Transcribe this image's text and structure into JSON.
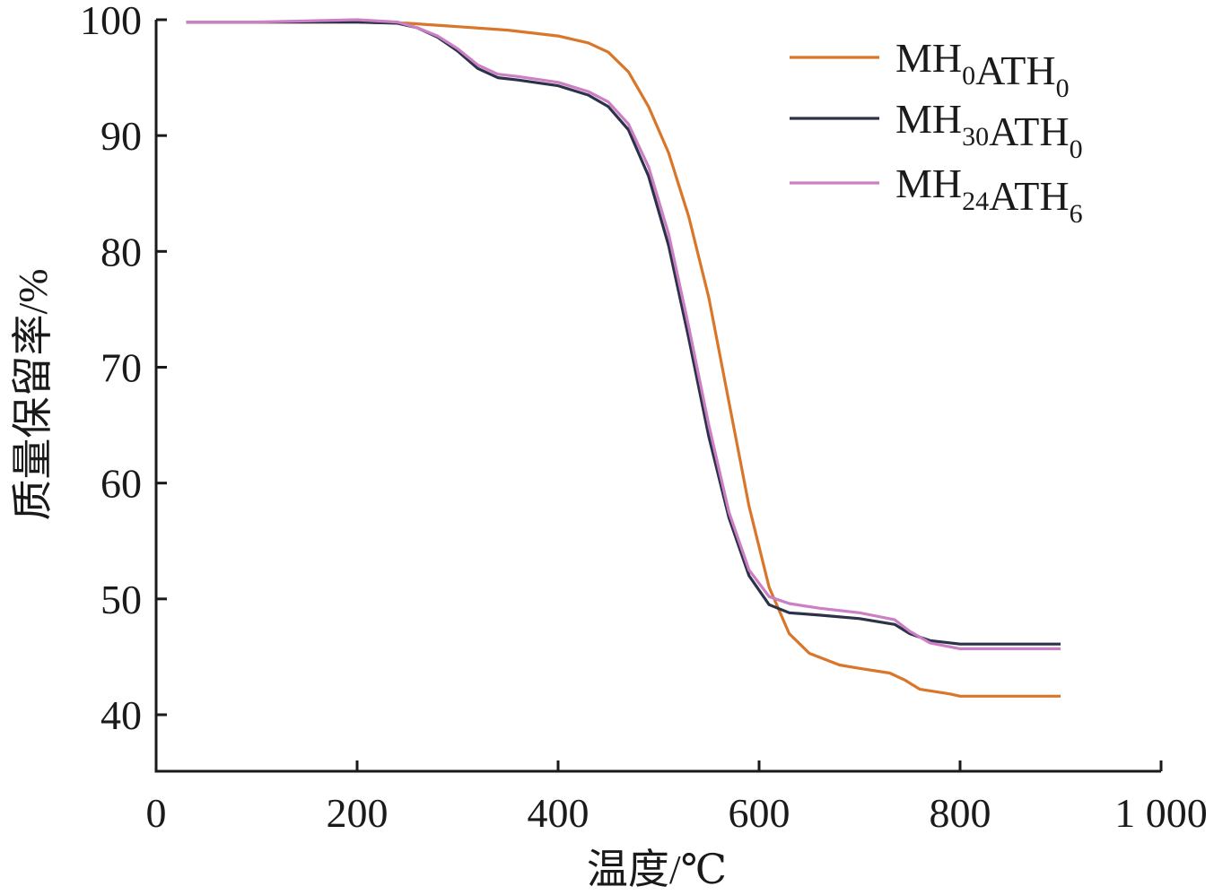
{
  "chart_data": {
    "type": "line",
    "xlabel": "温度/℃",
    "ylabel": "质量保留率/%",
    "xlim": [
      0,
      1000
    ],
    "ylim": [
      35,
      100
    ],
    "xticks": [
      0,
      200,
      400,
      600,
      800,
      1000
    ],
    "xtick_labels": [
      "0",
      "200",
      "400",
      "600",
      "800",
      "1 000"
    ],
    "yticks": [
      40,
      50,
      60,
      70,
      80,
      90,
      100
    ],
    "ytick_labels": [
      "40",
      "50",
      "60",
      "70",
      "80",
      "90",
      "100"
    ],
    "grid": false,
    "legend_position": "top-right",
    "series": [
      {
        "name": "MH0ATH0",
        "legend_parts": [
          [
            "MH",
            "0"
          ],
          [
            "ATH",
            "0"
          ]
        ],
        "color": "#d9762a",
        "points": [
          [
            30,
            99.8
          ],
          [
            100,
            99.8
          ],
          [
            200,
            99.8
          ],
          [
            250,
            99.7
          ],
          [
            300,
            99.4
          ],
          [
            350,
            99.1
          ],
          [
            400,
            98.6
          ],
          [
            430,
            98.0
          ],
          [
            450,
            97.2
          ],
          [
            470,
            95.5
          ],
          [
            490,
            92.5
          ],
          [
            510,
            88.5
          ],
          [
            530,
            83.0
          ],
          [
            550,
            76.0
          ],
          [
            570,
            67.0
          ],
          [
            590,
            58.0
          ],
          [
            610,
            51.0
          ],
          [
            630,
            47.0
          ],
          [
            650,
            45.3
          ],
          [
            680,
            44.3
          ],
          [
            700,
            44.0
          ],
          [
            730,
            43.6
          ],
          [
            745,
            43.0
          ],
          [
            760,
            42.2
          ],
          [
            790,
            41.8
          ],
          [
            800,
            41.6
          ],
          [
            900,
            41.6
          ]
        ]
      },
      {
        "name": "MH30ATH0",
        "legend_parts": [
          [
            "MH",
            "30"
          ],
          [
            "ATH",
            "0"
          ]
        ],
        "color": "#2c3248",
        "points": [
          [
            30,
            99.8
          ],
          [
            100,
            99.8
          ],
          [
            200,
            99.8
          ],
          [
            240,
            99.7
          ],
          [
            260,
            99.3
          ],
          [
            280,
            98.5
          ],
          [
            300,
            97.3
          ],
          [
            320,
            95.8
          ],
          [
            340,
            95.0
          ],
          [
            360,
            94.8
          ],
          [
            400,
            94.3
          ],
          [
            430,
            93.5
          ],
          [
            450,
            92.5
          ],
          [
            470,
            90.5
          ],
          [
            490,
            86.5
          ],
          [
            510,
            80.5
          ],
          [
            530,
            72.5
          ],
          [
            550,
            64.0
          ],
          [
            570,
            57.0
          ],
          [
            590,
            52.0
          ],
          [
            610,
            49.5
          ],
          [
            630,
            48.8
          ],
          [
            660,
            48.6
          ],
          [
            700,
            48.3
          ],
          [
            735,
            47.8
          ],
          [
            750,
            47.0
          ],
          [
            770,
            46.4
          ],
          [
            800,
            46.1
          ],
          [
            900,
            46.1
          ]
        ]
      },
      {
        "name": "MH24ATH6",
        "legend_parts": [
          [
            "MH",
            "24"
          ],
          [
            "ATH",
            "6"
          ]
        ],
        "color": "#cc7fc4",
        "points": [
          [
            30,
            99.8
          ],
          [
            100,
            99.8
          ],
          [
            200,
            100.0
          ],
          [
            240,
            99.8
          ],
          [
            260,
            99.3
          ],
          [
            280,
            98.6
          ],
          [
            300,
            97.5
          ],
          [
            320,
            96.1
          ],
          [
            340,
            95.3
          ],
          [
            360,
            95.1
          ],
          [
            400,
            94.6
          ],
          [
            430,
            93.8
          ],
          [
            450,
            92.9
          ],
          [
            470,
            91.0
          ],
          [
            490,
            87.3
          ],
          [
            510,
            81.5
          ],
          [
            530,
            73.5
          ],
          [
            550,
            65.0
          ],
          [
            570,
            57.5
          ],
          [
            590,
            52.5
          ],
          [
            610,
            50.2
          ],
          [
            630,
            49.6
          ],
          [
            660,
            49.2
          ],
          [
            700,
            48.8
          ],
          [
            735,
            48.2
          ],
          [
            750,
            47.2
          ],
          [
            770,
            46.2
          ],
          [
            800,
            45.7
          ],
          [
            900,
            45.7
          ]
        ]
      }
    ]
  }
}
